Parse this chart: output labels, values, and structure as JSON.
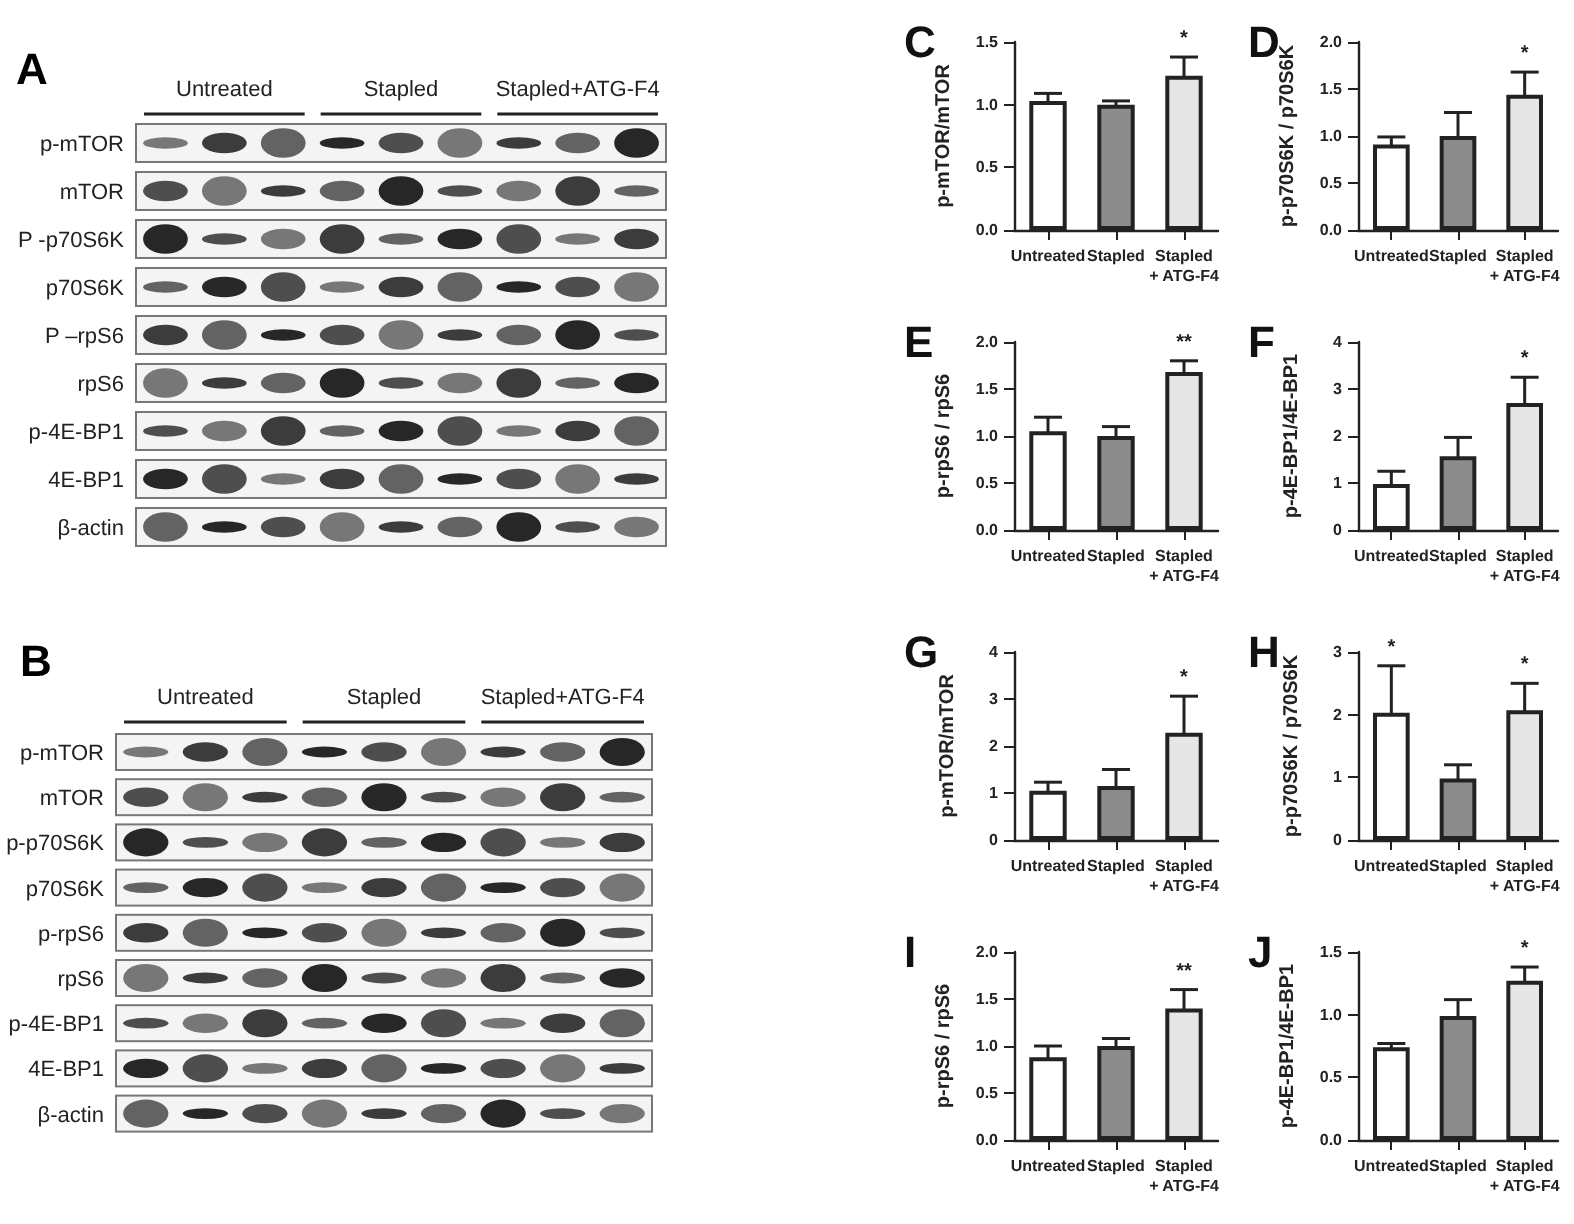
{
  "chart_data": [
    {
      "type": "other",
      "title": "A",
      "categories": [
        "Untreated",
        "Stapled",
        "Stapled+ATG-F4"
      ],
      "y_categories": [
        "p-mTOR",
        "mTOR",
        "P -p70S6K",
        "p70S6K",
        "P –rpS6",
        "rpS6",
        "p-4E-BP1",
        "4E-BP1",
        "β-actin"
      ]
    },
    {
      "type": "bar",
      "title": "C",
      "ylabel": "p-mTOR/mTOR",
      "categories": [
        "Untreated",
        "Stapled",
        "Stapled\n+ ATG-F4"
      ],
      "values": [
        1.03,
        1.0,
        1.23
      ],
      "errors": [
        0.06,
        0.03,
        0.15
      ],
      "colors": [
        "#ffffff",
        "#8c8c8c",
        "#e6e6e6"
      ],
      "ylim": [
        0,
        1.5
      ],
      "yticks": [
        {
          "value": 0,
          "label": "0.0"
        },
        0.5,
        {
          "value": 1,
          "label": "1.0"
        },
        1.5
      ],
      "annotations": [
        {
          "text": "*",
          "x": "Stapled\n+ ATG-F4",
          "y": 1.23
        }
      ]
    },
    {
      "type": "bar",
      "title": "D",
      "ylabel": "p-p70S6K / p70S6K",
      "categories": [
        "Untreated",
        "Stapled",
        "Stapled\n+ ATG-F4"
      ],
      "values": [
        0.91,
        1.0,
        1.44
      ],
      "errors": [
        0.08,
        0.25,
        0.24
      ],
      "colors": [
        "#ffffff",
        "#8c8c8c",
        "#e6e6e6"
      ],
      "ylim": [
        0,
        2
      ],
      "yticks": [
        {
          "value": 0,
          "label": "0.0"
        },
        0.5,
        {
          "value": 1,
          "label": "1.0"
        },
        1.5,
        {
          "value": 2,
          "label": "2.0"
        }
      ],
      "annotations": [
        {
          "text": "*",
          "x": "Stapled\n+ ATG-F4",
          "y": 1.44
        }
      ]
    },
    {
      "type": "bar",
      "title": "E",
      "ylabel": "p-rpS6 / rpS6",
      "categories": [
        "Untreated",
        "Stapled",
        "Stapled\n+ ATG-F4"
      ],
      "values": [
        1.05,
        1.0,
        1.68
      ],
      "errors": [
        0.15,
        0.1,
        0.12
      ],
      "colors": [
        "#ffffff",
        "#8c8c8c",
        "#e6e6e6"
      ],
      "ylim": [
        0,
        2
      ],
      "yticks": [
        {
          "value": 0,
          "label": "0.0"
        },
        0.5,
        {
          "value": 1,
          "label": "1.0"
        },
        1.5,
        {
          "value": 2,
          "label": "2.0"
        }
      ],
      "annotations": [
        {
          "text": "**",
          "x": "Stapled\n+ ATG-F4",
          "y": 1.68
        }
      ]
    },
    {
      "type": "bar",
      "title": "F",
      "ylabel": "p-4E-BP1/4E-BP1",
      "categories": [
        "Untreated",
        "Stapled",
        "Stapled\n+ ATG-F4"
      ],
      "values": [
        0.98,
        1.57,
        2.7
      ],
      "errors": [
        0.27,
        0.4,
        0.55
      ],
      "colors": [
        "#ffffff",
        "#8c8c8c",
        "#e6e6e6"
      ],
      "ylim": [
        0,
        4
      ],
      "yticks": [
        0,
        1,
        2,
        3,
        4
      ],
      "annotations": [
        {
          "text": "*",
          "x": "Stapled\n+ ATG-F4",
          "y": 2.7
        }
      ]
    },
    {
      "type": "other",
      "title": "B",
      "categories": [
        "Untreated",
        "Stapled",
        "Stapled+ATG-F4"
      ],
      "y_categories": [
        "p-mTOR",
        "mTOR",
        "p-p70S6K",
        "p70S6K",
        "p-rpS6",
        "rpS6",
        "p-4E-BP1",
        "4E-BP1",
        "β-actin"
      ]
    },
    {
      "type": "bar",
      "title": "G",
      "ylabel": "p-mTOR/mTOR",
      "categories": [
        "Untreated",
        "Stapled",
        "Stapled\n+ ATG-F4"
      ],
      "values": [
        1.05,
        1.15,
        2.28
      ],
      "errors": [
        0.18,
        0.35,
        0.78
      ],
      "colors": [
        "#ffffff",
        "#8c8c8c",
        "#e6e6e6"
      ],
      "ylim": [
        0,
        4
      ],
      "yticks": [
        0,
        1,
        2,
        3,
        4
      ],
      "annotations": [
        {
          "text": "*",
          "x": "Stapled\n+ ATG-F4",
          "y": 2.28
        }
      ]
    },
    {
      "type": "bar",
      "title": "H",
      "ylabel": "p-p70S6K / p70S6K",
      "categories": [
        "Untreated",
        "Stapled",
        "Stapled\n+ ATG-F4"
      ],
      "values": [
        2.03,
        0.98,
        2.07
      ],
      "errors": [
        0.75,
        0.22,
        0.43
      ],
      "colors": [
        "#ffffff",
        "#8c8c8c",
        "#e6e6e6"
      ],
      "ylim": [
        0,
        3
      ],
      "yticks": [
        0,
        1,
        2,
        3
      ],
      "annotations": [
        {
          "text": "*",
          "x": "Untreated",
          "y": 2.03
        },
        {
          "text": "*",
          "x": "Stapled\n+ ATG-F4",
          "y": 2.07
        }
      ]
    },
    {
      "type": "bar",
      "title": "I",
      "ylabel": "p-rpS6 / rpS6",
      "categories": [
        "Untreated",
        "Stapled",
        "Stapled\n+ ATG-F4"
      ],
      "values": [
        0.88,
        1.0,
        1.4
      ],
      "errors": [
        0.12,
        0.08,
        0.2
      ],
      "colors": [
        "#ffffff",
        "#8c8c8c",
        "#e6e6e6"
      ],
      "ylim": [
        0,
        2
      ],
      "yticks": [
        {
          "value": 0,
          "label": "0.0"
        },
        0.5,
        {
          "value": 1,
          "label": "1.0"
        },
        1.5,
        {
          "value": 2,
          "label": "2.0"
        }
      ],
      "annotations": [
        {
          "text": "**",
          "x": "Stapled\n+ ATG-F4",
          "y": 1.4
        }
      ]
    },
    {
      "type": "bar",
      "title": "J",
      "ylabel": "p-4E-BP1/4E-BP1",
      "categories": [
        "Untreated",
        "Stapled",
        "Stapled\n+ ATG-F4"
      ],
      "values": [
        0.74,
        0.99,
        1.27
      ],
      "errors": [
        0.03,
        0.13,
        0.11
      ],
      "colors": [
        "#ffffff",
        "#8c8c8c",
        "#e6e6e6"
      ],
      "ylim": [
        0,
        1.5
      ],
      "yticks": [
        {
          "value": 0,
          "label": "0.0"
        },
        0.5,
        {
          "value": 1,
          "label": "1.0"
        },
        1.5
      ],
      "annotations": [
        {
          "text": "*",
          "x": "Stapled\n+ ATG-F4",
          "y": 1.27
        }
      ]
    }
  ]
}
